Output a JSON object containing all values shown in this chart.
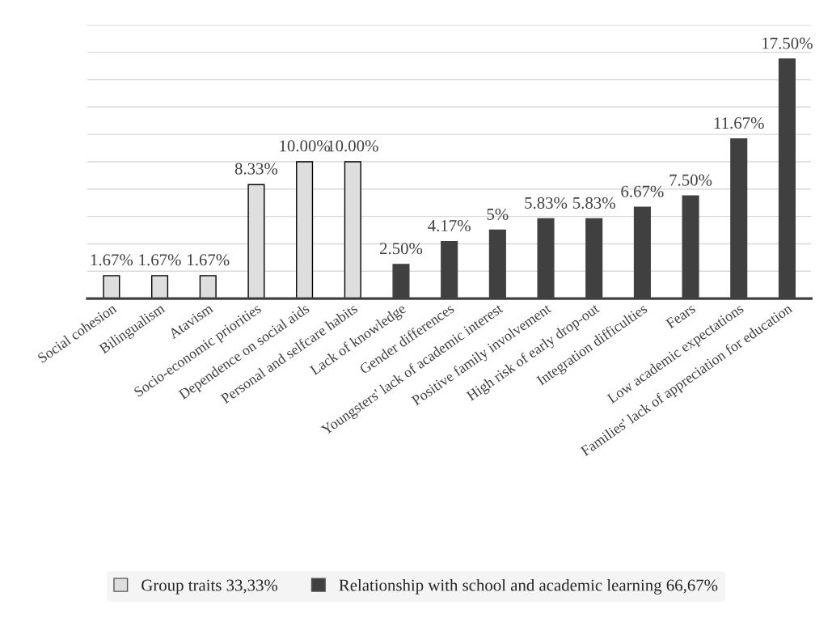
{
  "chart_data": {
    "type": "bar",
    "categories": [
      "Social cohesion",
      "Bilingualism",
      "Atavism",
      "Socio-economic priorities",
      "Dependence on social aids",
      "Personal and selfcare habits",
      "Lack of knowledge",
      "Gender differences",
      "Youngsters' lack of academic interest",
      "Positive family involvement",
      "High risk of early drop-out",
      "Integration difficulties",
      "Fears",
      "Low academic expectations",
      "Families' lack of appreciation for education"
    ],
    "series": [
      {
        "name": "Group traits 33,33%",
        "color": "#dedede",
        "values": [
          1.67,
          1.67,
          1.67,
          8.33,
          10.0,
          10.0,
          null,
          null,
          null,
          null,
          null,
          null,
          null,
          null,
          null
        ],
        "value_labels": [
          "1.67%",
          "1.67%",
          "1.67%",
          "8.33%",
          "10.00%",
          "10.00%",
          null,
          null,
          null,
          null,
          null,
          null,
          null,
          null,
          null
        ]
      },
      {
        "name": "Relationship with school and academic learning 66,67%",
        "color": "#404040",
        "values": [
          null,
          null,
          null,
          null,
          null,
          null,
          2.5,
          4.17,
          5,
          5.83,
          5.83,
          6.67,
          7.5,
          11.67,
          17.5
        ],
        "value_labels": [
          null,
          null,
          null,
          null,
          null,
          null,
          "2.50%",
          "4.17%",
          "5%",
          "5.83%",
          "5.83%",
          "6.67%",
          "7.50%",
          "11.67%",
          "17.50%"
        ]
      }
    ],
    "ylim": [
      0,
      20
    ],
    "yticks": [
      {
        "value": 0,
        "label": null
      },
      {
        "value": 2,
        "label": null
      },
      {
        "value": 4,
        "label": null
      },
      {
        "value": 6,
        "label": null
      },
      {
        "value": 8,
        "label": null
      },
      {
        "value": 10,
        "label": null
      },
      {
        "value": 12,
        "label": null
      },
      {
        "value": 14,
        "label": null
      },
      {
        "value": 16,
        "label": null
      },
      {
        "value": 18,
        "label": null
      },
      {
        "value": 20,
        "label": null
      }
    ],
    "tick_labels": "x",
    "grid": "y",
    "legend": "bottom"
  }
}
